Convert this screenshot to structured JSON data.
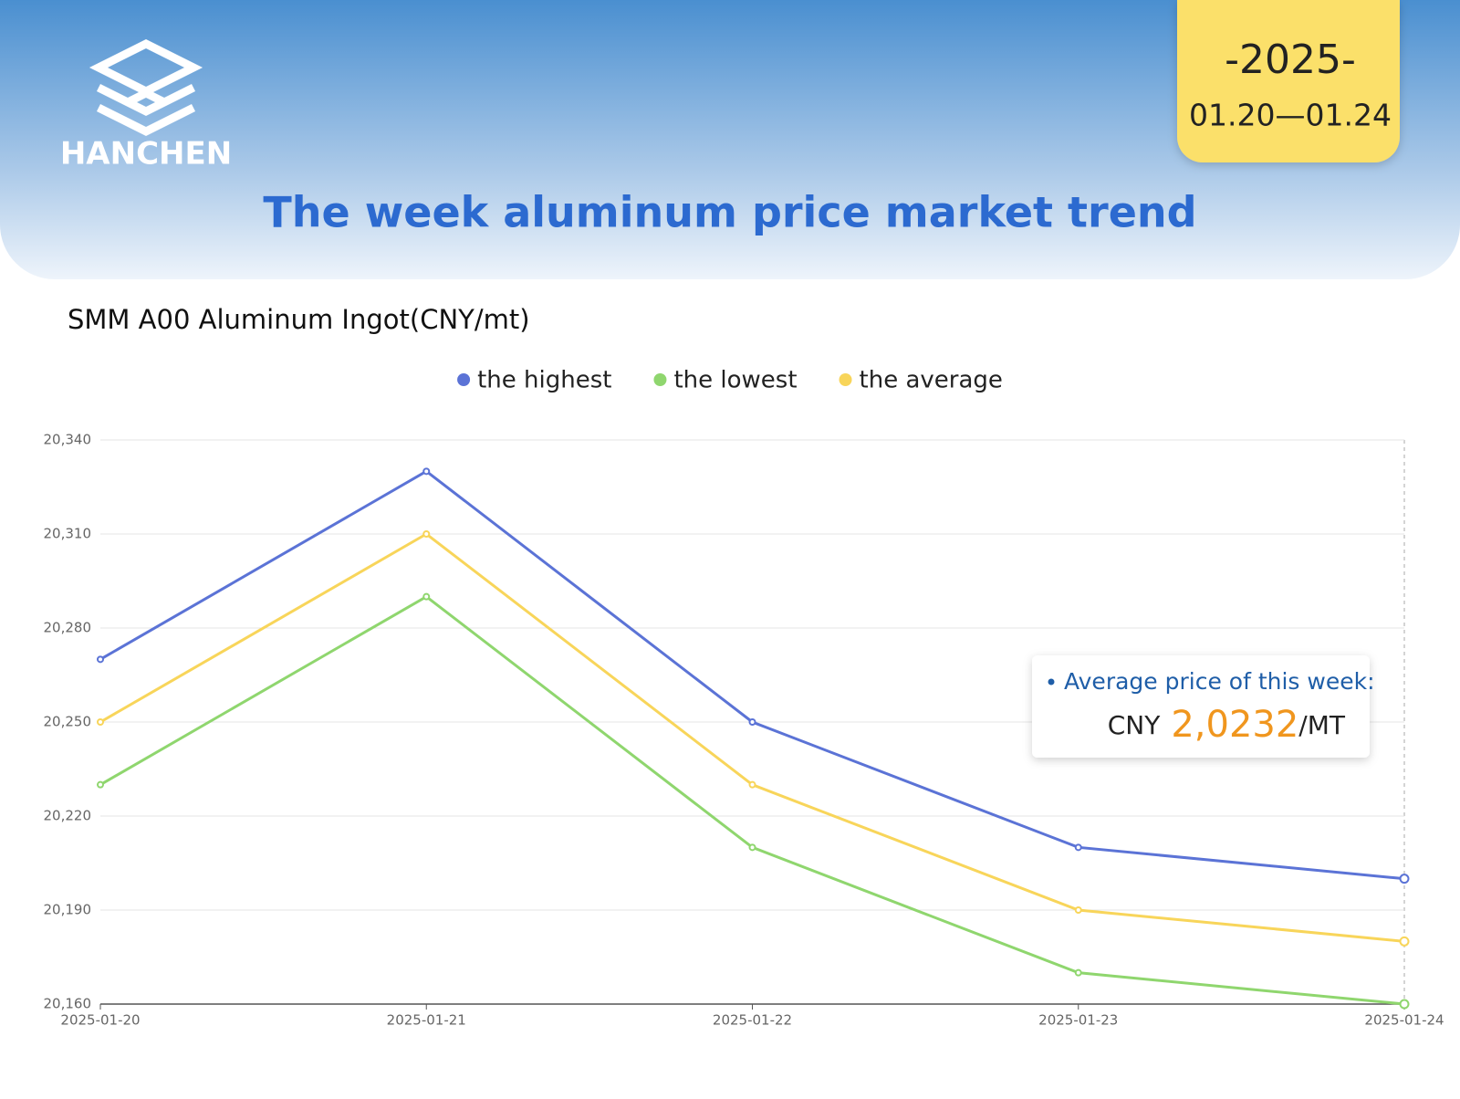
{
  "header": {
    "logo_text": "HANCHEN",
    "year": "-2025-",
    "dates": "01.20—01.24",
    "title": "The week aluminum price market trend"
  },
  "chart_data": {
    "type": "line",
    "title": "SMM A00 Aluminum Ingot(CNY/mt)",
    "categories": [
      "2025-01-20",
      "2025-01-21",
      "2025-01-22",
      "2025-01-23",
      "2025-01-24"
    ],
    "series": [
      {
        "name": "the highest",
        "color": "#5b73d6",
        "values": [
          20270,
          20330,
          20250,
          20210,
          20200
        ]
      },
      {
        "name": "the lowest",
        "color": "#8fd66e",
        "values": [
          20230,
          20290,
          20210,
          20170,
          20160
        ]
      },
      {
        "name": "the average",
        "color": "#f8d55a",
        "values": [
          20250,
          20310,
          20230,
          20190,
          20180
        ]
      }
    ],
    "ylim": [
      20160,
      20340
    ],
    "yticks": [
      {
        "value": 20160,
        "label": "20,160"
      },
      {
        "value": 20190,
        "label": "20,190"
      },
      {
        "value": 20220,
        "label": "20,220"
      },
      {
        "value": 20250,
        "label": "20,250"
      },
      {
        "value": 20280,
        "label": "20,280"
      },
      {
        "value": 20310,
        "label": "20,310"
      },
      {
        "value": 20340,
        "label": "20,340"
      }
    ],
    "grid": true,
    "annotation": {
      "label": "Average price of this week:",
      "prefix": "CNY",
      "value": "2,0232",
      "suffix": "/MT"
    }
  }
}
